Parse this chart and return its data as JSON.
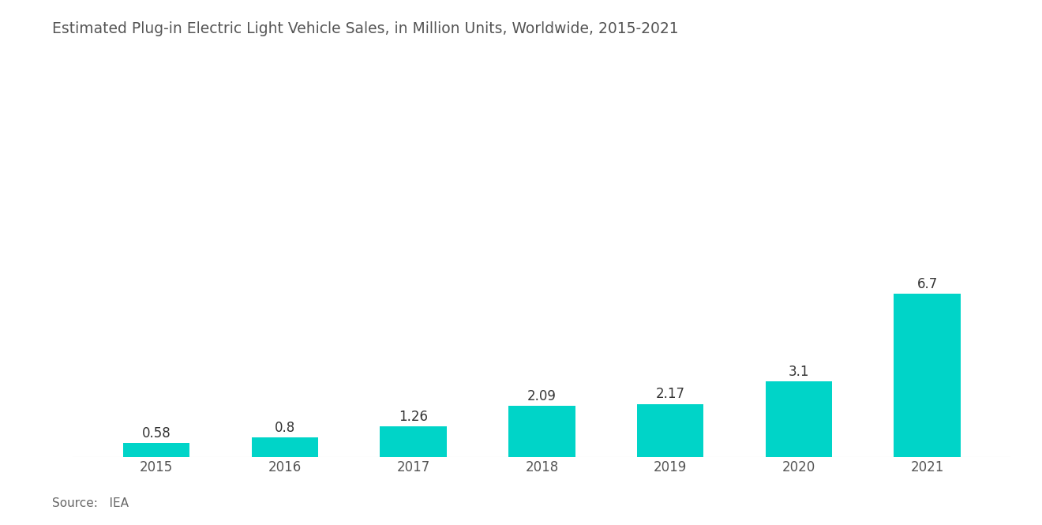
{
  "title": "Estimated Plug-in Electric Light Vehicle Sales, in Million Units, Worldwide, 2015-2021",
  "categories": [
    "2015",
    "2016",
    "2017",
    "2018",
    "2019",
    "2020",
    "2021"
  ],
  "values": [
    0.58,
    0.8,
    1.26,
    2.09,
    2.17,
    3.1,
    6.7
  ],
  "bar_color": "#00D4C8",
  "background_color": "#ffffff",
  "title_fontsize": 13.5,
  "tick_fontsize": 12,
  "source_text": "Source:   IEA",
  "source_fontsize": 11,
  "ylim": [
    0,
    14.0
  ],
  "title_color": "#555555",
  "tick_color": "#555555",
  "source_color": "#666666",
  "bar_label_color": "#333333",
  "bar_label_fontsize": 12
}
